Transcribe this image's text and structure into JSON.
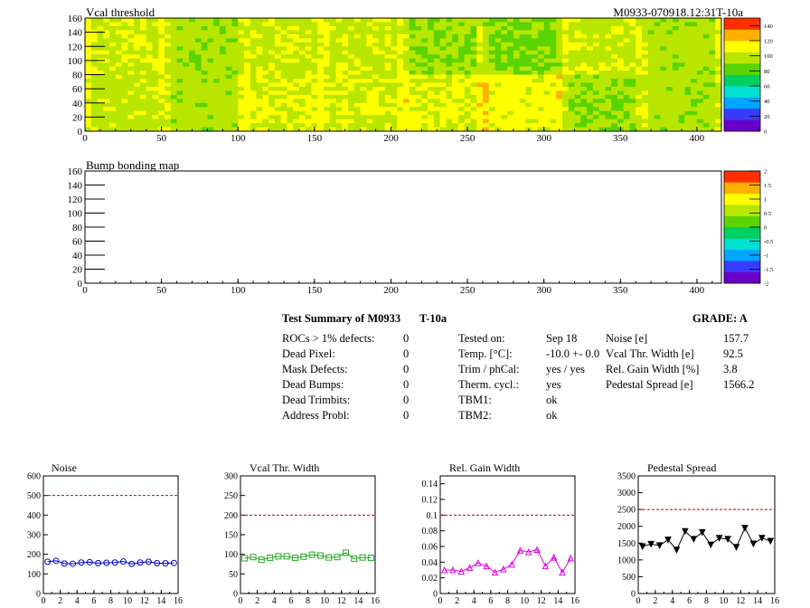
{
  "header": {
    "title_left": "Vcal threshold",
    "title_right": "M0933-070918.12:31T-10a"
  },
  "colors": {
    "palette": [
      "#6a00c8",
      "#3a3aff",
      "#00a6ff",
      "#00e0d0",
      "#00d060",
      "#5ad400",
      "#b8e600",
      "#ffff00",
      "#ffb000",
      "#ff3000"
    ],
    "noise": "#0000c8",
    "vcal": "#22aa22",
    "gain": "#dd00dd",
    "pedestal": "#000000",
    "limit_line": "#cc0000"
  },
  "summary": {
    "heading": "Test Summary of M0933",
    "temp_tag": "T-10a",
    "grade": "GRADE:  A",
    "rows": [
      {
        "label": "ROCs > 1% defects:",
        "value": "0"
      },
      {
        "label": "Dead Pixel:",
        "value": "0"
      },
      {
        "label": "Mask Defects:",
        "value": "0"
      },
      {
        "label": "Dead Bumps:",
        "value": "0"
      },
      {
        "label": "Dead Trimbits:",
        "value": "0"
      },
      {
        "label": "Address Probl:",
        "value": "0"
      }
    ],
    "conditions": [
      {
        "label": "Tested on:",
        "value": "Sep 18"
      },
      {
        "label": "Temp. [°C]:",
        "value": "-10.0 +- 0.0"
      },
      {
        "label": "Trim / phCal:",
        "value": "yes / yes"
      },
      {
        "label": "Therm. cycl.:",
        "value": "yes"
      },
      {
        "label": "TBM1:",
        "value": "ok"
      },
      {
        "label": "TBM2:",
        "value": "ok"
      }
    ],
    "results": [
      {
        "label": "Noise [e]",
        "value": "157.7"
      },
      {
        "label": "Vcal Thr. Width [e]",
        "value": "92.5"
      },
      {
        "label": "Rel. Gain Width [%]",
        "value": "3.8"
      },
      {
        "label": "Pedestal Spread [e]",
        "value": "1566.2"
      }
    ]
  },
  "chart_data": [
    {
      "type": "heatmap",
      "title": "Vcal threshold",
      "xlim": [
        0,
        416
      ],
      "ylim": [
        0,
        160
      ],
      "xticks": [
        0,
        50,
        100,
        150,
        200,
        250,
        300,
        350,
        400
      ],
      "yticks": [
        0,
        20,
        40,
        60,
        80,
        100,
        120,
        140,
        160
      ],
      "colorbar": {
        "min": 0,
        "max": 150,
        "ticks": [
          0,
          20,
          40,
          60,
          80,
          100,
          120,
          140
        ]
      },
      "roc_grid": {
        "cols": 8,
        "rows": 2
      },
      "roc_levels_top": [
        103,
        94,
        102,
        101,
        93,
        88,
        101,
        96
      ],
      "roc_levels_bottom": [
        99,
        97,
        105,
        103,
        106,
        110,
        91,
        96
      ]
    },
    {
      "type": "heatmap",
      "title": "Bump bonding map",
      "xlim": [
        0,
        416
      ],
      "ylim": [
        0,
        160
      ],
      "xticks": [
        0,
        50,
        100,
        150,
        200,
        250,
        300,
        350,
        400
      ],
      "yticks": [
        0,
        20,
        40,
        60,
        80,
        100,
        120,
        140,
        160
      ],
      "colorbar": {
        "min": -2,
        "max": 2,
        "ticks": [
          -2,
          -1.5,
          -1,
          -0.5,
          0,
          0.5,
          1,
          1.5,
          2
        ]
      },
      "values": []
    },
    {
      "type": "line",
      "title": "Noise",
      "x": [
        0,
        1,
        2,
        3,
        4,
        5,
        6,
        7,
        8,
        9,
        10,
        11,
        12,
        13,
        14,
        15
      ],
      "values": [
        162,
        167,
        153,
        152,
        158,
        160,
        155,
        157,
        158,
        163,
        151,
        158,
        162,
        155,
        154,
        156
      ],
      "xlim": [
        0,
        16
      ],
      "ylim": [
        0,
        600
      ],
      "xticks": [
        0,
        2,
        4,
        6,
        8,
        10,
        12,
        14,
        16
      ],
      "yticks": [
        0,
        100,
        200,
        300,
        400,
        500,
        600
      ],
      "limit": 500,
      "marker": "circle"
    },
    {
      "type": "line",
      "title": "Vcal Thr. Width",
      "x": [
        0,
        1,
        2,
        3,
        4,
        5,
        6,
        7,
        8,
        9,
        10,
        11,
        12,
        13,
        14,
        15
      ],
      "values": [
        90,
        93,
        86,
        91,
        95,
        95,
        91,
        94,
        99,
        97,
        92,
        93,
        104,
        89,
        92,
        91
      ],
      "xlim": [
        0,
        16
      ],
      "ylim": [
        0,
        300
      ],
      "xticks": [
        0,
        2,
        4,
        6,
        8,
        10,
        12,
        14,
        16
      ],
      "yticks": [
        0,
        50,
        100,
        150,
        200,
        250,
        300
      ],
      "limit": 200,
      "marker": "square"
    },
    {
      "type": "line",
      "title": "Rel. Gain Width",
      "x": [
        0,
        1,
        2,
        3,
        4,
        5,
        6,
        7,
        8,
        9,
        10,
        11,
        12,
        13,
        14,
        15
      ],
      "values": [
        0.03,
        0.03,
        0.028,
        0.033,
        0.039,
        0.035,
        0.027,
        0.031,
        0.037,
        0.055,
        0.053,
        0.056,
        0.035,
        0.046,
        0.027,
        0.045
      ],
      "xlim": [
        0,
        16
      ],
      "ylim": [
        0,
        0.15
      ],
      "xticks": [
        0,
        2,
        4,
        6,
        8,
        10,
        12,
        14,
        16
      ],
      "yticks": [
        0,
        0.02,
        0.04,
        0.06,
        0.08,
        0.1,
        0.12,
        0.14
      ],
      "limit": 0.1,
      "marker": "triangle"
    },
    {
      "type": "line",
      "title": "Pedestal Spread",
      "x": [
        0,
        1,
        2,
        3,
        4,
        5,
        6,
        7,
        8,
        9,
        10,
        11,
        12,
        13,
        14,
        15
      ],
      "values": [
        1400,
        1470,
        1430,
        1600,
        1300,
        1850,
        1620,
        1820,
        1450,
        1650,
        1620,
        1380,
        1950,
        1480,
        1650,
        1560
      ],
      "xlim": [
        0,
        16
      ],
      "ylim": [
        0,
        3500
      ],
      "xticks": [
        0,
        2,
        4,
        6,
        8,
        10,
        12,
        14,
        16
      ],
      "yticks": [
        0,
        500,
        1000,
        1500,
        2000,
        2500,
        3000,
        3500
      ],
      "limit": 2500,
      "marker": "triangle-down"
    }
  ]
}
